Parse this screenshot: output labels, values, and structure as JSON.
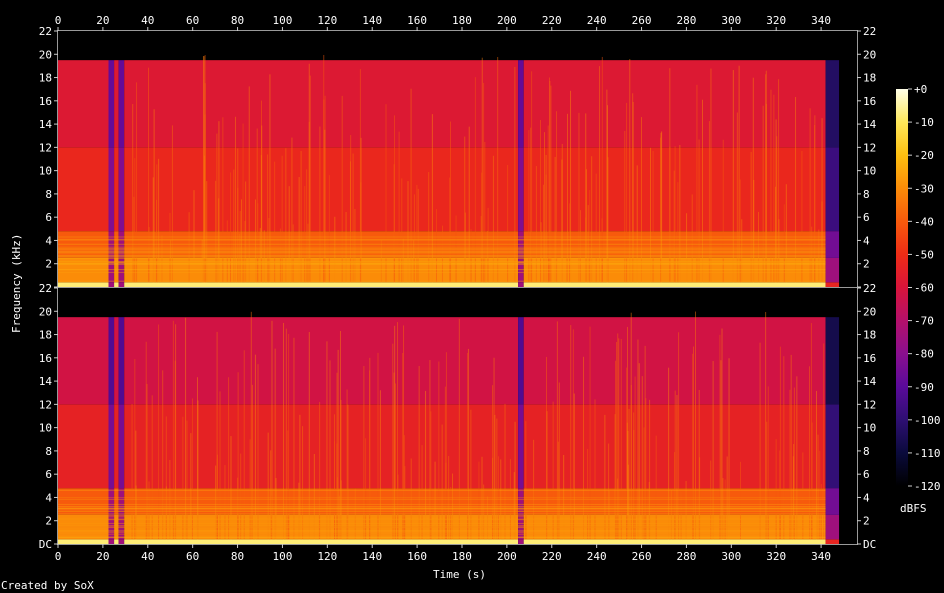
{
  "chart_data": {
    "type": "heatmap",
    "subtype": "spectrogram",
    "title": "",
    "xlabel": "Time (s)",
    "ylabel": "Frequency (kHz)",
    "colorbar_label": "dBFS",
    "footer": "Created by SoX",
    "xlim": [
      0,
      356
    ],
    "ylim_khz": [
      0,
      22
    ],
    "x_ticks": [
      0,
      20,
      40,
      60,
      80,
      100,
      120,
      140,
      160,
      180,
      200,
      220,
      240,
      260,
      280,
      300,
      320,
      340
    ],
    "y_ticks": [
      0,
      2,
      4,
      6,
      8,
      10,
      12,
      14,
      16,
      18,
      20,
      22
    ],
    "y_tick_labels_top": [
      "",
      "2",
      "4",
      "6",
      "8",
      "10",
      "12",
      "14",
      "16",
      "18",
      "20",
      "22"
    ],
    "y_tick_labels_bottom": [
      "DC",
      "2",
      "4",
      "6",
      "8",
      "10",
      "12",
      "14",
      "16",
      "18",
      "20",
      "22"
    ],
    "colorbar_ticks": [
      0,
      -10,
      -20,
      -30,
      -40,
      -50,
      -60,
      -70,
      -80,
      -90,
      -100,
      -110,
      -120
    ],
    "colorbar_tick_labels": [
      "+0",
      "-10",
      "-20",
      "-30",
      "-40",
      "-50",
      "-60",
      "-70",
      "-80",
      "-90",
      "-100",
      "-110",
      "-120"
    ],
    "colorbar_range_db": [
      -120,
      0
    ],
    "channels": [
      {
        "bands_khz_db": [
          {
            "from": 0,
            "to": 0.4,
            "db": -8
          },
          {
            "from": 0.4,
            "to": 2.5,
            "db": -30
          },
          {
            "from": 2.5,
            "to": 4.8,
            "db": -40
          },
          {
            "from": 4.8,
            "to": 12,
            "db": -52
          },
          {
            "from": 12,
            "to": 19.5,
            "db": -58
          },
          {
            "from": 19.5,
            "to": 22,
            "db": -120
          }
        ],
        "segments": [
          {
            "from": 0,
            "to": 22.5,
            "level": "full"
          },
          {
            "from": 22.5,
            "to": 25,
            "level": "quiet"
          },
          {
            "from": 25,
            "to": 27,
            "level": "full"
          },
          {
            "from": 27,
            "to": 29.5,
            "level": "quiet"
          },
          {
            "from": 29.5,
            "to": 205,
            "level": "full"
          },
          {
            "from": 205,
            "to": 207.5,
            "level": "quiet"
          },
          {
            "from": 207.5,
            "to": 342,
            "level": "full"
          },
          {
            "from": 342,
            "to": 348,
            "level": "fade"
          }
        ]
      },
      {
        "bands_khz_db": [
          {
            "from": 0,
            "to": 0.4,
            "db": -8
          },
          {
            "from": 0.4,
            "to": 2.5,
            "db": -30
          },
          {
            "from": 2.5,
            "to": 4.8,
            "db": -40
          },
          {
            "from": 4.8,
            "to": 12,
            "db": -54
          },
          {
            "from": 12,
            "to": 19.5,
            "db": -62
          },
          {
            "from": 19.5,
            "to": 22,
            "db": -120
          }
        ],
        "segments": [
          {
            "from": 0,
            "to": 22.5,
            "level": "full"
          },
          {
            "from": 22.5,
            "to": 25,
            "level": "quiet"
          },
          {
            "from": 25,
            "to": 27,
            "level": "full"
          },
          {
            "from": 27,
            "to": 29.5,
            "level": "quiet"
          },
          {
            "from": 29.5,
            "to": 205,
            "level": "full"
          },
          {
            "from": 205,
            "to": 207.5,
            "level": "quiet"
          },
          {
            "from": 207.5,
            "to": 342,
            "level": "full"
          },
          {
            "from": 342,
            "to": 348,
            "level": "fade"
          }
        ]
      }
    ],
    "colormap": [
      "#000000",
      "#0a0a3c",
      "#2e0f72",
      "#5a0a9a",
      "#8a0f8e",
      "#b4106a",
      "#d8143a",
      "#ee2c16",
      "#f75a0c",
      "#fb8c08",
      "#fdbf10",
      "#fee85a",
      "#ffffe8"
    ]
  }
}
